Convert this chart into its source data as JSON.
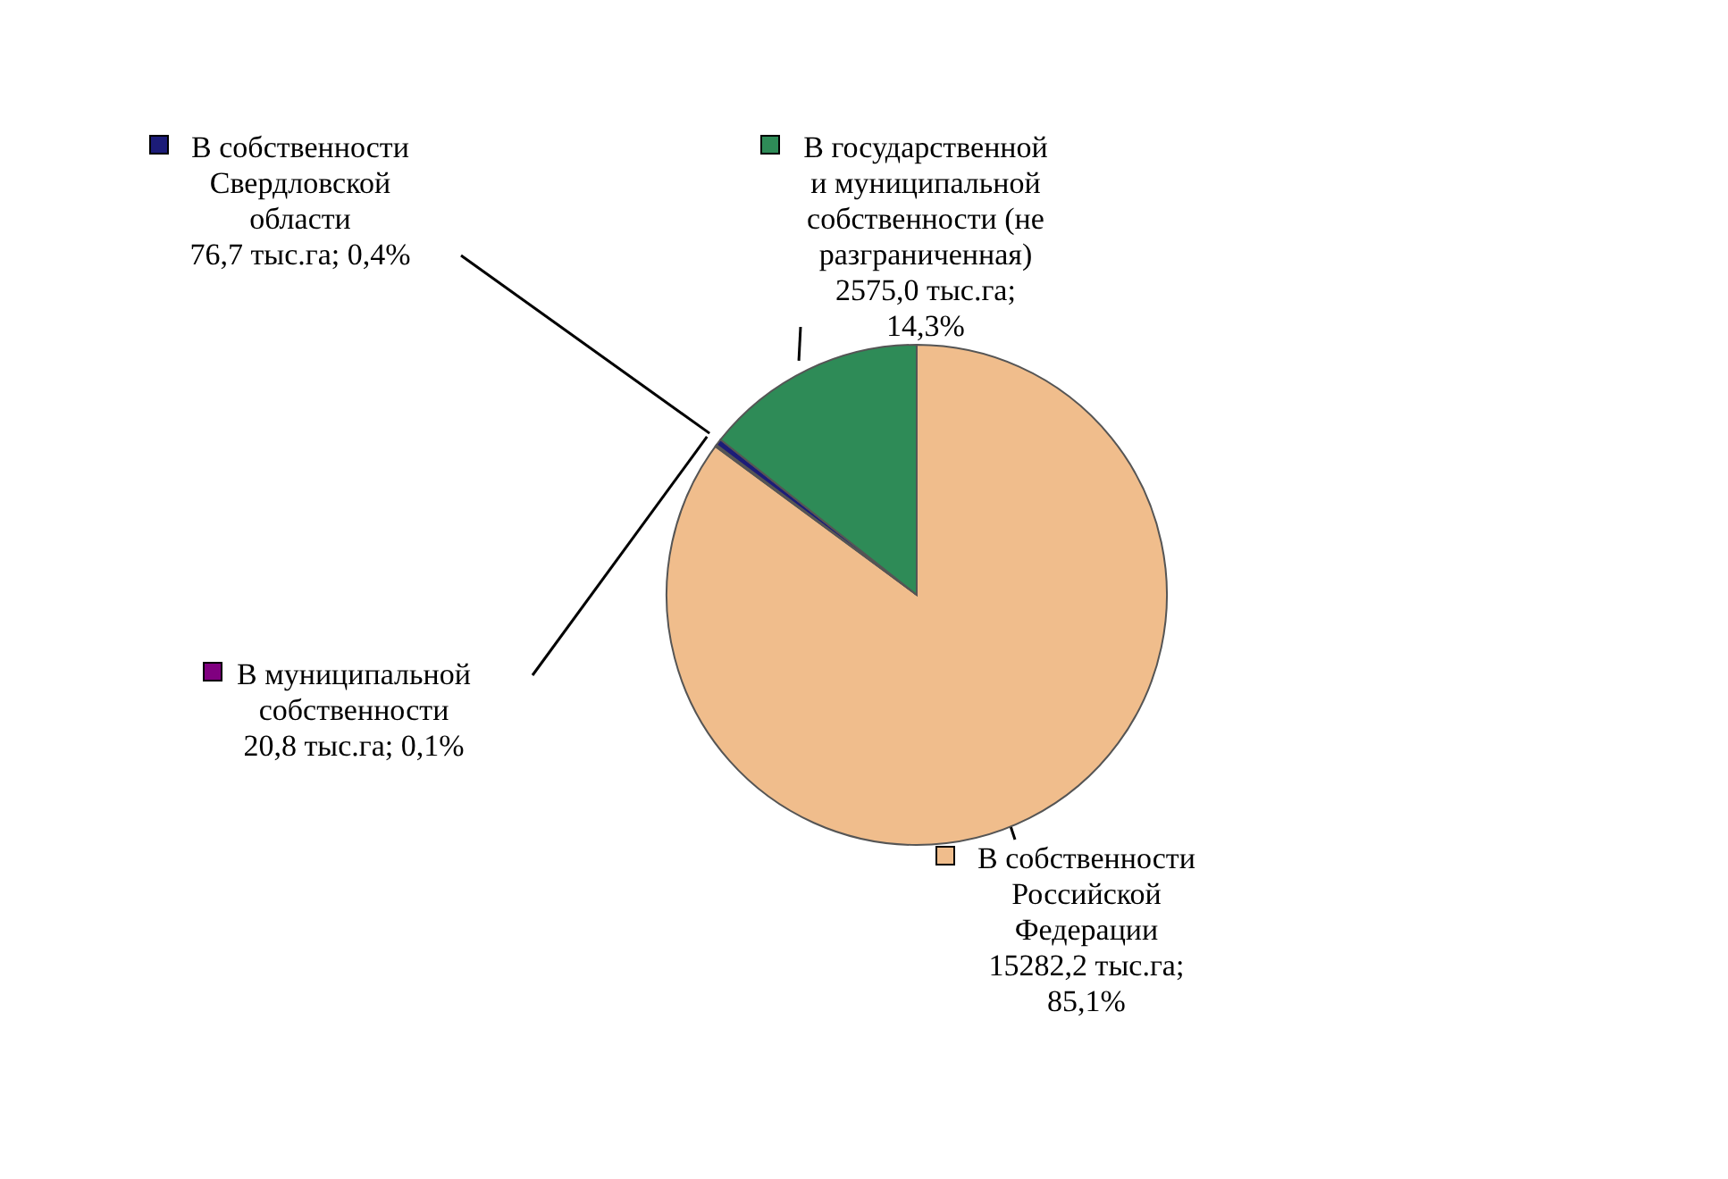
{
  "chart_data": {
    "type": "pie",
    "categories": [
      "В собственности Российской Федерации",
      "В муниципальной собственности",
      "В собственности Свердловской области",
      "В государственной и муниципальной собственности (не разграниченная)"
    ],
    "values": [
      15282.2,
      20.8,
      76.7,
      2575.0
    ],
    "value_labels": [
      "15282,2 тыс.га; 85,1%",
      "20,8 тыс.га; 0,1%",
      "76,7 тыс.га; 0,4%",
      "2575,0 тыс.га; 14,3%"
    ],
    "legend": "left",
    "colors": [
      "#f0bd8c",
      "#800080",
      "#1c1c78",
      "#2e8b57"
    ]
  }
}
